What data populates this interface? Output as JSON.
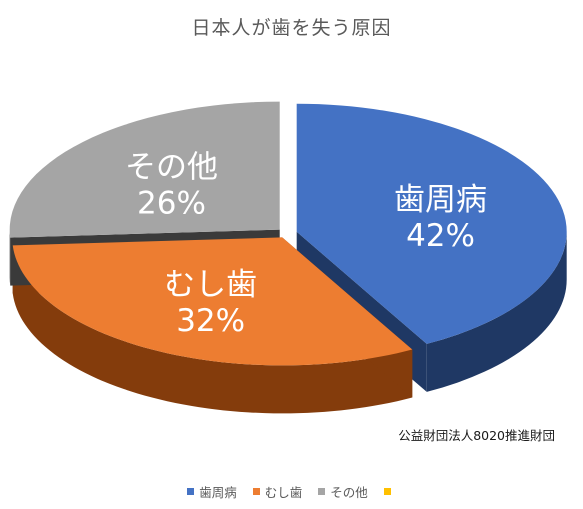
{
  "chart_data": {
    "type": "pie",
    "title": "日本人が歯を失う原因",
    "style": "3d-exploded",
    "categories": [
      "歯周病",
      "むし歯",
      "その他",
      ""
    ],
    "values": [
      42,
      32,
      26,
      0
    ],
    "value_labels": [
      "42%",
      "32%",
      "26%",
      ""
    ],
    "colors": [
      "#4472c4",
      "#ed7d31",
      "#a5a5a5",
      "#ffc000"
    ],
    "side_colors": [
      "#1f3864",
      "#843c0c",
      "#3a3a3a",
      "#806000"
    ],
    "legend_position": "bottom",
    "annotation": "公益財団法人8020推進財団"
  }
}
